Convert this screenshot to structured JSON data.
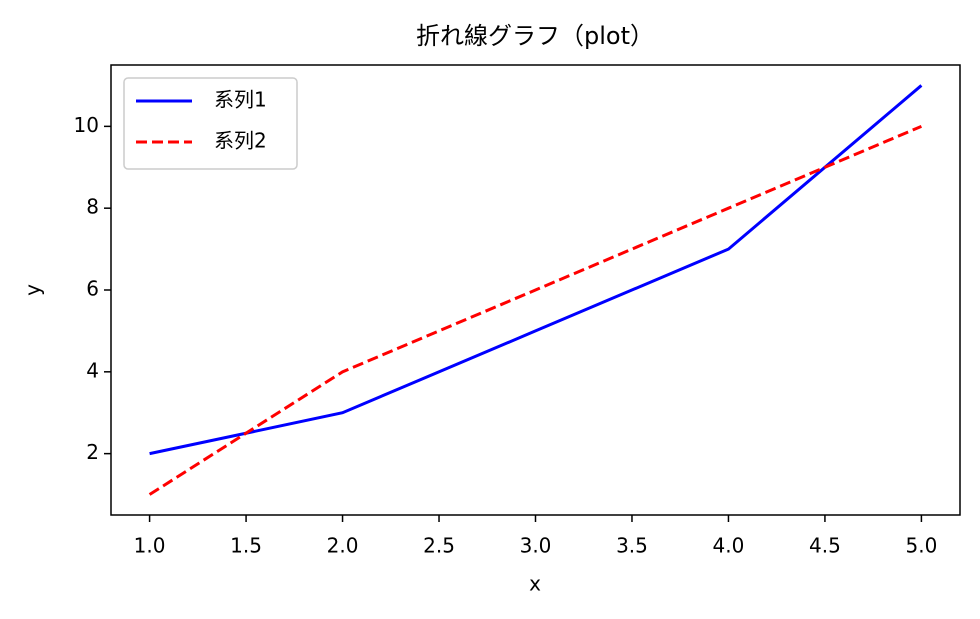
{
  "chart_data": {
    "type": "line",
    "title": "折れ線グラフ（plot）",
    "x_label": "x",
    "y_label": "y",
    "x": [
      1,
      2,
      3,
      4,
      5
    ],
    "series": [
      {
        "name": "系列1",
        "color": "#0000ff",
        "dash": "solid",
        "values": [
          2,
          3,
          5,
          7,
          11
        ]
      },
      {
        "name": "系列2",
        "color": "#ff0000",
        "dash": "dashed",
        "values": [
          1,
          4,
          6,
          8,
          10
        ]
      }
    ],
    "xlim": [
      0.8,
      5.2
    ],
    "xticks": [
      {
        "value": 1,
        "label": "1.0"
      },
      {
        "value": 1.5,
        "label": "1.5"
      },
      {
        "value": 2,
        "label": "2.0"
      },
      {
        "value": 2.5,
        "label": "2.5"
      },
      {
        "value": 3,
        "label": "3.0"
      },
      {
        "value": 3.5,
        "label": "3.5"
      },
      {
        "value": 4,
        "label": "4.0"
      },
      {
        "value": 4.5,
        "label": "4.5"
      },
      {
        "value": 5,
        "label": "5.0"
      }
    ],
    "ylim": [
      0.5,
      11.5
    ],
    "yticks": [
      2,
      4,
      6,
      8,
      10
    ],
    "grid": false,
    "legend": "upper left"
  }
}
